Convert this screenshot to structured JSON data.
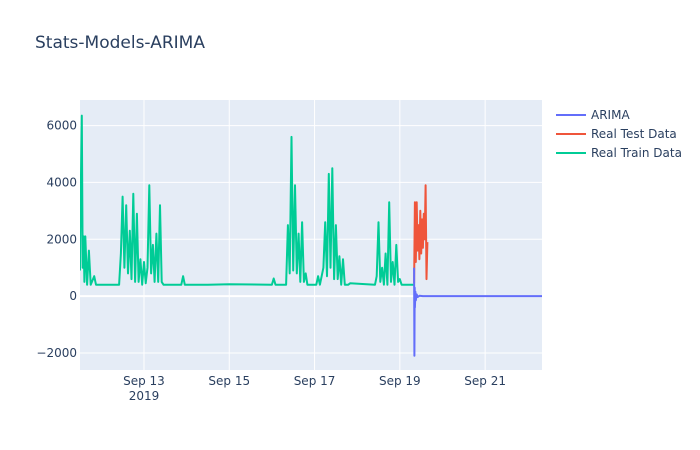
{
  "chart_data": {
    "type": "line",
    "title": "Stats-Models-ARIMA",
    "xlabel": "",
    "ylabel": "",
    "x_type": "date",
    "xlim": [
      "2019-09-11 12:00",
      "2019-09-22 08:00"
    ],
    "ylim": [
      -2600,
      6900
    ],
    "x_ticks": [
      {
        "date": "2019-09-13",
        "label": "Sep 13",
        "sublabel": "2019"
      },
      {
        "date": "2019-09-15",
        "label": "Sep 15",
        "sublabel": ""
      },
      {
        "date": "2019-09-17",
        "label": "Sep 17",
        "sublabel": ""
      },
      {
        "date": "2019-09-19",
        "label": "Sep 19",
        "sublabel": ""
      },
      {
        "date": "2019-09-21",
        "label": "Sep 21",
        "sublabel": ""
      }
    ],
    "y_ticks": [
      {
        "value": -2000,
        "label": "−2000"
      },
      {
        "value": 0,
        "label": "0"
      },
      {
        "value": 2000,
        "label": "2000"
      },
      {
        "value": 4000,
        "label": "4000"
      },
      {
        "value": 6000,
        "label": "6000"
      }
    ],
    "grid": true,
    "legend_position": "top-right",
    "background_color": "#e5ecf6",
    "series": [
      {
        "name": "ARIMA",
        "color": "#636efa",
        "points": [
          [
            "2019-09-19 08:00",
            1000
          ],
          [
            "2019-09-19 08:10",
            -2100
          ],
          [
            "2019-09-19 08:20",
            300
          ],
          [
            "2019-09-19 08:30",
            -400
          ],
          [
            "2019-09-19 08:45",
            150
          ],
          [
            "2019-09-19 09:00",
            -150
          ],
          [
            "2019-09-19 09:30",
            60
          ],
          [
            "2019-09-19 10:00",
            -30
          ],
          [
            "2019-09-19 11:00",
            10
          ],
          [
            "2019-09-19 13:00",
            0
          ],
          [
            "2019-09-20 00:00",
            0
          ],
          [
            "2019-09-21 00:00",
            0
          ],
          [
            "2019-09-22 08:00",
            0
          ]
        ]
      },
      {
        "name": "Real Test Data",
        "color": "#ef553b",
        "points": [
          [
            "2019-09-19 08:00",
            450
          ],
          [
            "2019-09-19 08:30",
            3300
          ],
          [
            "2019-09-19 09:00",
            1200
          ],
          [
            "2019-09-19 09:30",
            3300
          ],
          [
            "2019-09-19 10:00",
            1600
          ],
          [
            "2019-09-19 10:30",
            2500
          ],
          [
            "2019-09-19 11:00",
            1300
          ],
          [
            "2019-09-19 11:30",
            3000
          ],
          [
            "2019-09-19 12:00",
            1500
          ],
          [
            "2019-09-19 12:30",
            2700
          ],
          [
            "2019-09-19 13:00",
            1700
          ],
          [
            "2019-09-19 13:30",
            2900
          ],
          [
            "2019-09-19 14:00",
            2000
          ],
          [
            "2019-09-19 14:30",
            3900
          ],
          [
            "2019-09-19 15:00",
            600
          ],
          [
            "2019-09-19 15:30",
            1900
          ]
        ]
      },
      {
        "name": "Real Train Data",
        "color": "#00cc96",
        "points": [
          [
            "2019-09-11 12:00",
            900
          ],
          [
            "2019-09-11 12:30",
            4000
          ],
          [
            "2019-09-11 13:00",
            6350
          ],
          [
            "2019-09-11 13:30",
            1000
          ],
          [
            "2019-09-11 14:00",
            2100
          ],
          [
            "2019-09-11 14:30",
            500
          ],
          [
            "2019-09-11 15:00",
            2100
          ],
          [
            "2019-09-11 16:00",
            400
          ],
          [
            "2019-09-11 17:00",
            1600
          ],
          [
            "2019-09-11 18:00",
            400
          ],
          [
            "2019-09-11 20:00",
            700
          ],
          [
            "2019-09-11 21:00",
            400
          ],
          [
            "2019-09-12 10:00",
            400
          ],
          [
            "2019-09-12 11:00",
            1500
          ],
          [
            "2019-09-12 12:00",
            3500
          ],
          [
            "2019-09-12 13:00",
            1000
          ],
          [
            "2019-09-12 14:00",
            3200
          ],
          [
            "2019-09-12 15:00",
            800
          ],
          [
            "2019-09-12 16:00",
            2300
          ],
          [
            "2019-09-12 17:00",
            600
          ],
          [
            "2019-09-12 18:00",
            3600
          ],
          [
            "2019-09-12 19:00",
            500
          ],
          [
            "2019-09-12 20:00",
            2900
          ],
          [
            "2019-09-12 21:00",
            500
          ],
          [
            "2019-09-12 22:00",
            1300
          ],
          [
            "2019-09-12 23:00",
            400
          ],
          [
            "2019-09-13 00:00",
            1200
          ],
          [
            "2019-09-13 01:00",
            450
          ],
          [
            "2019-09-13 02:00",
            1000
          ],
          [
            "2019-09-13 03:00",
            3900
          ],
          [
            "2019-09-13 04:00",
            800
          ],
          [
            "2019-09-13 05:00",
            1800
          ],
          [
            "2019-09-13 06:00",
            500
          ],
          [
            "2019-09-13 07:00",
            2200
          ],
          [
            "2019-09-13 08:00",
            500
          ],
          [
            "2019-09-13 09:00",
            3200
          ],
          [
            "2019-09-13 10:00",
            500
          ],
          [
            "2019-09-13 11:00",
            400
          ],
          [
            "2019-09-13 21:00",
            400
          ],
          [
            "2019-09-13 22:00",
            700
          ],
          [
            "2019-09-13 23:00",
            400
          ],
          [
            "2019-09-14 12:00",
            400
          ],
          [
            "2019-09-15 00:00",
            420
          ],
          [
            "2019-09-16 00:00",
            400
          ],
          [
            "2019-09-16 01:00",
            620
          ],
          [
            "2019-09-16 02:00",
            400
          ],
          [
            "2019-09-16 08:00",
            400
          ],
          [
            "2019-09-16 09:00",
            2500
          ],
          [
            "2019-09-16 10:00",
            800
          ],
          [
            "2019-09-16 11:00",
            5600
          ],
          [
            "2019-09-16 12:00",
            900
          ],
          [
            "2019-09-16 13:00",
            3900
          ],
          [
            "2019-09-16 14:00",
            800
          ],
          [
            "2019-09-16 15:00",
            2200
          ],
          [
            "2019-09-16 16:00",
            500
          ],
          [
            "2019-09-16 17:00",
            2600
          ],
          [
            "2019-09-16 18:00",
            500
          ],
          [
            "2019-09-16 19:00",
            800
          ],
          [
            "2019-09-16 20:00",
            400
          ],
          [
            "2019-09-17 01:00",
            400
          ],
          [
            "2019-09-17 02:00",
            700
          ],
          [
            "2019-09-17 03:00",
            400
          ],
          [
            "2019-09-17 05:00",
            1000
          ],
          [
            "2019-09-17 06:00",
            2600
          ],
          [
            "2019-09-17 07:00",
            700
          ],
          [
            "2019-09-17 08:00",
            4300
          ],
          [
            "2019-09-17 09:00",
            1000
          ],
          [
            "2019-09-17 10:00",
            4500
          ],
          [
            "2019-09-17 11:00",
            600
          ],
          [
            "2019-09-17 12:00",
            2500
          ],
          [
            "2019-09-17 13:00",
            600
          ],
          [
            "2019-09-17 14:00",
            1400
          ],
          [
            "2019-09-17 15:00",
            400
          ],
          [
            "2019-09-17 16:00",
            1300
          ],
          [
            "2019-09-17 17:00",
            400
          ],
          [
            "2019-09-17 19:00",
            400
          ],
          [
            "2019-09-17 20:00",
            450
          ],
          [
            "2019-09-18 10:00",
            400
          ],
          [
            "2019-09-18 11:00",
            700
          ],
          [
            "2019-09-18 12:00",
            2600
          ],
          [
            "2019-09-18 13:00",
            500
          ],
          [
            "2019-09-18 14:00",
            1000
          ],
          [
            "2019-09-18 15:00",
            400
          ],
          [
            "2019-09-18 16:00",
            1500
          ],
          [
            "2019-09-18 17:00",
            400
          ],
          [
            "2019-09-18 18:00",
            3300
          ],
          [
            "2019-09-18 19:00",
            500
          ],
          [
            "2019-09-18 20:00",
            1200
          ],
          [
            "2019-09-18 21:00",
            400
          ],
          [
            "2019-09-18 22:00",
            1800
          ],
          [
            "2019-09-18 23:00",
            500
          ],
          [
            "2019-09-19 00:00",
            600
          ],
          [
            "2019-09-19 01:00",
            400
          ],
          [
            "2019-09-19 08:00",
            400
          ]
        ]
      }
    ]
  }
}
